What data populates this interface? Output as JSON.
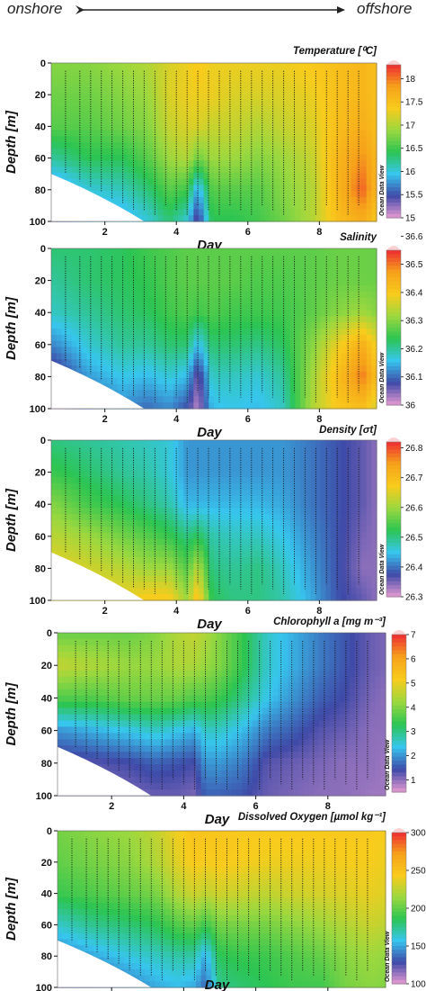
{
  "header": {
    "left_label": "onshore",
    "right_label": "offshore"
  },
  "colorbar_credit": "Ocean Data View",
  "colors": {
    "ramp": [
      "#e69ad1",
      "#3f4aa8",
      "#37c6ee",
      "#2cc552",
      "#9bd83f",
      "#f8cc1c",
      "#f6a21a",
      "#ee2b32",
      "#fbd0d3"
    ]
  },
  "chart_data": [
    {
      "type": "heatmap",
      "title": "Temperature [⁰C]",
      "xlabel": "Day",
      "ylabel": "Depth [m]",
      "x_ticks": [
        "2",
        "4",
        "6",
        "8"
      ],
      "y_ticks": [
        "0",
        "20",
        "40",
        "60",
        "80",
        "100"
      ],
      "xlim": [
        0.5,
        9.6
      ],
      "ylim": [
        0,
        100
      ],
      "colorbar": {
        "min": 15,
        "max": 18.3,
        "ticks": [
          "15",
          "15.5",
          "16",
          "16.5",
          "17",
          "17.5",
          "18"
        ]
      },
      "profile_days": [
        0.9,
        1.3,
        1.6,
        1.9,
        2.2,
        2.5,
        2.8,
        3.1,
        3.4,
        3.7,
        4.0,
        4.3,
        4.6,
        4.9,
        5.2,
        5.5,
        5.8,
        6.1,
        6.4,
        6.7,
        7.0,
        7.3,
        7.6,
        7.9,
        8.2,
        8.5,
        8.8,
        9.1
      ],
      "sections": [
        {
          "day": 0.6,
          "values": [
            16.8,
            16.7,
            16.6,
            16.2,
            15.7,
            15.4
          ]
        },
        {
          "day": 1.5,
          "values": [
            16.8,
            16.7,
            16.6,
            16.4,
            16.0,
            15.7
          ]
        },
        {
          "day": 2.5,
          "values": [
            16.9,
            16.8,
            16.7,
            16.4,
            16.1,
            15.8
          ]
        },
        {
          "day": 3.2,
          "values": [
            17.0,
            16.9,
            16.8,
            16.6,
            16.3,
            16.0
          ]
        },
        {
          "day": 3.8,
          "values": [
            17.2,
            17.2,
            17.1,
            16.9,
            16.6,
            16.3
          ]
        },
        {
          "day": 4.3,
          "values": [
            17.3,
            17.3,
            17.2,
            17.0,
            16.5,
            16.0
          ]
        },
        {
          "day": 4.6,
          "values": [
            17.4,
            17.3,
            17.2,
            16.7,
            15.8,
            15.3
          ]
        },
        {
          "day": 5.0,
          "values": [
            17.3,
            17.3,
            17.1,
            16.9,
            16.6,
            16.4
          ]
        },
        {
          "day": 5.6,
          "values": [
            17.3,
            17.2,
            17.1,
            16.9,
            16.6,
            16.4
          ]
        },
        {
          "day": 6.3,
          "values": [
            17.3,
            17.2,
            17.0,
            16.8,
            16.6,
            16.5
          ]
        },
        {
          "day": 7.0,
          "values": [
            17.3,
            17.2,
            17.1,
            16.9,
            16.8,
            16.7
          ]
        },
        {
          "day": 7.8,
          "values": [
            17.4,
            17.3,
            17.2,
            17.1,
            17.0,
            17.0
          ]
        },
        {
          "day": 8.5,
          "values": [
            17.5,
            17.5,
            17.5,
            17.6,
            17.6,
            17.5
          ]
        },
        {
          "day": 9.2,
          "values": [
            17.6,
            17.6,
            17.7,
            17.9,
            18.1,
            17.7
          ]
        },
        {
          "day": 9.6,
          "values": [
            17.5,
            17.5,
            17.5,
            17.6,
            17.6,
            17.4
          ]
        }
      ]
    },
    {
      "type": "heatmap",
      "title": "Salinity",
      "xlabel": "Day",
      "ylabel": "Depth [m]",
      "x_ticks": [
        "2",
        "4",
        "6",
        "8"
      ],
      "y_ticks": [
        "0",
        "20",
        "40",
        "60",
        "80",
        "100"
      ],
      "xlim": [
        0.5,
        9.6
      ],
      "ylim": [
        0,
        100
      ],
      "colorbar": {
        "min": 36,
        "max": 36.55,
        "ticks": [
          "36",
          "36.1",
          "36.2",
          "36.3",
          "36.4",
          "36.5",
          "36.6"
        ]
      },
      "profile_days": [
        0.9,
        1.3,
        1.6,
        1.9,
        2.2,
        2.5,
        2.8,
        3.1,
        3.4,
        3.7,
        4.0,
        4.3,
        4.6,
        4.9,
        5.2,
        5.5,
        5.8,
        6.1,
        6.4,
        6.7,
        7.0,
        7.3,
        7.6,
        7.9,
        8.2,
        8.5,
        8.8,
        9.1
      ],
      "sections": [
        {
          "day": 0.6,
          "values": [
            36.22,
            36.2,
            36.18,
            36.12,
            36.05,
            36.02
          ]
        },
        {
          "day": 1.5,
          "values": [
            36.22,
            36.22,
            36.2,
            36.17,
            36.13,
            36.08
          ]
        },
        {
          "day": 2.5,
          "values": [
            36.23,
            36.23,
            36.22,
            36.2,
            36.16,
            36.12
          ]
        },
        {
          "day": 3.2,
          "values": [
            36.25,
            36.24,
            36.23,
            36.2,
            36.15,
            36.1
          ]
        },
        {
          "day": 3.8,
          "values": [
            36.26,
            36.26,
            36.25,
            36.22,
            36.17,
            36.12
          ]
        },
        {
          "day": 4.3,
          "values": [
            36.27,
            36.27,
            36.26,
            36.22,
            36.15,
            36.08
          ]
        },
        {
          "day": 4.6,
          "values": [
            36.27,
            36.27,
            36.25,
            36.15,
            36.05,
            36.02
          ]
        },
        {
          "day": 5.0,
          "values": [
            36.27,
            36.27,
            36.26,
            36.22,
            36.18,
            36.15
          ]
        },
        {
          "day": 5.6,
          "values": [
            36.27,
            36.27,
            36.25,
            36.22,
            36.18,
            36.16
          ]
        },
        {
          "day": 6.3,
          "values": [
            36.27,
            36.26,
            36.25,
            36.21,
            36.17,
            36.15
          ]
        },
        {
          "day": 7.0,
          "values": [
            36.27,
            36.26,
            36.25,
            36.23,
            36.2,
            36.18
          ]
        },
        {
          "day": 7.8,
          "values": [
            36.27,
            36.27,
            36.27,
            36.3,
            36.32,
            36.33
          ]
        },
        {
          "day": 8.5,
          "values": [
            36.28,
            36.28,
            36.3,
            36.38,
            36.42,
            36.4
          ]
        },
        {
          "day": 9.2,
          "values": [
            36.28,
            36.28,
            36.32,
            36.45,
            36.5,
            36.42
          ]
        },
        {
          "day": 9.6,
          "values": [
            36.28,
            36.28,
            36.3,
            36.38,
            36.42,
            36.36
          ]
        }
      ]
    },
    {
      "type": "heatmap",
      "title": "Density [σt]",
      "xlabel": "Day",
      "ylabel": "Depth [m]",
      "x_ticks": [
        "2",
        "4",
        "6",
        "8"
      ],
      "y_ticks": [
        "0",
        "20",
        "40",
        "60",
        "80",
        "100"
      ],
      "xlim": [
        0.5,
        9.6
      ],
      "ylim": [
        0,
        100
      ],
      "colorbar": {
        "min": 26.3,
        "max": 26.82,
        "ticks": [
          "26.3",
          "26.4",
          "26.5",
          "26.6",
          "26.7",
          "26.8"
        ]
      },
      "profile_days": [
        0.9,
        1.3,
        1.6,
        1.9,
        2.2,
        2.5,
        2.8,
        3.1,
        3.4,
        3.7,
        4.0,
        4.3,
        4.6,
        4.9,
        5.2,
        5.5,
        5.8,
        6.1,
        6.4,
        6.7,
        7.0,
        7.3,
        7.6,
        7.9,
        8.2,
        8.5,
        8.8,
        9.1
      ],
      "sections": [
        {
          "day": 0.6,
          "values": [
            26.5,
            26.53,
            26.58,
            26.62,
            26.66,
            26.68
          ]
        },
        {
          "day": 1.5,
          "values": [
            26.49,
            26.51,
            26.54,
            26.6,
            26.64,
            26.67
          ]
        },
        {
          "day": 2.5,
          "values": [
            26.48,
            26.49,
            26.52,
            26.57,
            26.62,
            26.66
          ]
        },
        {
          "day": 3.2,
          "values": [
            26.47,
            26.48,
            26.5,
            26.55,
            26.6,
            26.68
          ]
        },
        {
          "day": 3.8,
          "values": [
            26.46,
            26.46,
            26.48,
            26.53,
            26.6,
            26.68
          ]
        },
        {
          "day": 4.3,
          "values": [
            26.42,
            26.42,
            26.44,
            26.5,
            26.55,
            26.6
          ]
        },
        {
          "day": 4.6,
          "values": [
            26.42,
            26.42,
            26.44,
            26.52,
            26.62,
            26.7
          ]
        },
        {
          "day": 5.0,
          "values": [
            26.42,
            26.42,
            26.44,
            26.48,
            26.5,
            26.52
          ]
        },
        {
          "day": 5.6,
          "values": [
            26.42,
            26.42,
            26.44,
            26.47,
            26.49,
            26.5
          ]
        },
        {
          "day": 6.3,
          "values": [
            26.42,
            26.42,
            26.44,
            26.47,
            26.5,
            26.5
          ]
        },
        {
          "day": 7.0,
          "values": [
            26.42,
            26.42,
            26.43,
            26.45,
            26.47,
            26.48
          ]
        },
        {
          "day": 7.8,
          "values": [
            26.4,
            26.4,
            26.4,
            26.41,
            26.42,
            26.43
          ]
        },
        {
          "day": 8.5,
          "values": [
            26.38,
            26.38,
            26.38,
            26.38,
            26.38,
            26.38
          ]
        },
        {
          "day": 9.2,
          "values": [
            26.36,
            26.36,
            26.36,
            26.35,
            26.34,
            26.36
          ]
        },
        {
          "day": 9.6,
          "values": [
            26.34,
            26.34,
            26.34,
            26.34,
            26.34,
            26.34
          ]
        }
      ]
    },
    {
      "type": "heatmap",
      "title": "Chlorophyll a [mg m⁻³]",
      "xlabel": "Day",
      "ylabel": "Depth [m]",
      "x_ticks": [
        "2",
        "4",
        "6",
        "8"
      ],
      "y_ticks": [
        "0",
        "20",
        "40",
        "60",
        "80",
        "100"
      ],
      "xlim": [
        0.5,
        9.6
      ],
      "ylim": [
        0,
        100
      ],
      "colorbar": {
        "min": 0.5,
        "max": 7,
        "ticks": [
          "1",
          "2",
          "3",
          "4",
          "5",
          "6",
          "7"
        ]
      },
      "profile_days": [
        1.0,
        1.3,
        1.6,
        1.9,
        2.2,
        2.5,
        2.8,
        3.1,
        3.4,
        3.7,
        4.0,
        4.3,
        4.6,
        4.9,
        5.2,
        5.5,
        5.8,
        6.1,
        6.4,
        6.7,
        7.0,
        7.3,
        7.6,
        7.9,
        8.2,
        8.5,
        8.8,
        9.1
      ],
      "sections": [
        {
          "day": 0.6,
          "values": [
            3.8,
            4.6,
            3.6,
            2.0,
            1.2,
            1.0
          ]
        },
        {
          "day": 1.5,
          "values": [
            3.8,
            4.4,
            3.6,
            2.2,
            1.3,
            1.0
          ]
        },
        {
          "day": 2.5,
          "values": [
            3.8,
            4.2,
            3.8,
            2.4,
            1.4,
            1.1
          ]
        },
        {
          "day": 3.2,
          "values": [
            4.0,
            4.2,
            3.8,
            2.6,
            1.6,
            1.2
          ]
        },
        {
          "day": 3.8,
          "values": [
            4.4,
            4.4,
            3.8,
            2.4,
            1.5,
            1.2
          ]
        },
        {
          "day": 4.3,
          "values": [
            4.6,
            4.4,
            3.6,
            2.2,
            1.4,
            1.1
          ]
        },
        {
          "day": 4.6,
          "values": [
            4.4,
            4.2,
            3.6,
            2.6,
            2.0,
            1.6
          ]
        },
        {
          "day": 5.0,
          "values": [
            4.0,
            4.0,
            3.4,
            2.6,
            2.0,
            1.6
          ]
        },
        {
          "day": 5.6,
          "values": [
            3.4,
            3.4,
            3.0,
            2.3,
            1.8,
            1.5
          ]
        },
        {
          "day": 6.3,
          "values": [
            2.6,
            2.6,
            2.4,
            1.8,
            1.3,
            1.2
          ]
        },
        {
          "day": 7.0,
          "values": [
            2.2,
            2.2,
            2.0,
            1.6,
            1.2,
            1.1
          ]
        },
        {
          "day": 7.8,
          "values": [
            1.8,
            1.8,
            1.6,
            1.3,
            1.1,
            1.0
          ]
        },
        {
          "day": 8.5,
          "values": [
            1.5,
            1.5,
            1.4,
            1.2,
            1.0,
            1.0
          ]
        },
        {
          "day": 9.2,
          "values": [
            1.2,
            1.2,
            1.1,
            1.0,
            1.0,
            0.9
          ]
        },
        {
          "day": 9.6,
          "values": [
            1.1,
            1.1,
            1.0,
            1.0,
            0.9,
            0.9
          ]
        }
      ]
    },
    {
      "type": "heatmap",
      "title": "Dissolved Oxygen [µmol kg⁻¹]",
      "xlabel": "Day",
      "ylabel": "Depth [m]",
      "x_ticks": [
        "2",
        "4",
        "6",
        "8"
      ],
      "y_ticks": [
        "0",
        "20",
        "40",
        "60",
        "80",
        "100"
      ],
      "xlim": [
        0.5,
        9.6
      ],
      "ylim": [
        0,
        100
      ],
      "colorbar": {
        "min": 100,
        "max": 300,
        "ticks": [
          "100",
          "150",
          "200",
          "250",
          "300"
        ]
      },
      "profile_days": [
        0.9,
        1.3,
        1.6,
        1.9,
        2.2,
        2.5,
        2.8,
        3.1,
        3.4,
        3.7,
        4.0,
        4.3,
        4.6,
        4.9,
        5.2,
        5.5,
        5.8,
        6.1,
        6.4,
        6.7,
        7.0,
        7.3,
        7.6,
        7.9,
        8.2,
        8.5,
        8.8,
        9.1
      ],
      "sections": [
        {
          "day": 0.6,
          "values": [
            205,
            200,
            190,
            165,
            140,
            125
          ]
        },
        {
          "day": 1.5,
          "values": [
            210,
            205,
            195,
            175,
            150,
            130
          ]
        },
        {
          "day": 2.5,
          "values": [
            215,
            210,
            200,
            180,
            160,
            140
          ]
        },
        {
          "day": 3.2,
          "values": [
            225,
            220,
            205,
            185,
            165,
            150
          ]
        },
        {
          "day": 3.8,
          "values": [
            240,
            235,
            220,
            195,
            170,
            155
          ]
        },
        {
          "day": 4.3,
          "values": [
            250,
            245,
            230,
            200,
            170,
            150
          ]
        },
        {
          "day": 4.6,
          "values": [
            248,
            242,
            225,
            190,
            150,
            135
          ]
        },
        {
          "day": 5.0,
          "values": [
            248,
            245,
            230,
            205,
            185,
            175
          ]
        },
        {
          "day": 5.6,
          "values": [
            245,
            242,
            228,
            205,
            188,
            180
          ]
        },
        {
          "day": 6.3,
          "values": [
            245,
            240,
            225,
            205,
            190,
            185
          ]
        },
        {
          "day": 7.0,
          "values": [
            245,
            240,
            230,
            210,
            195,
            190
          ]
        },
        {
          "day": 7.8,
          "values": [
            245,
            240,
            232,
            215,
            200,
            190
          ]
        },
        {
          "day": 8.5,
          "values": [
            245,
            242,
            235,
            222,
            210,
            205
          ]
        },
        {
          "day": 9.2,
          "values": [
            245,
            242,
            238,
            228,
            215,
            210
          ]
        },
        {
          "day": 9.6,
          "values": [
            242,
            240,
            235,
            225,
            212,
            208
          ]
        }
      ]
    }
  ]
}
